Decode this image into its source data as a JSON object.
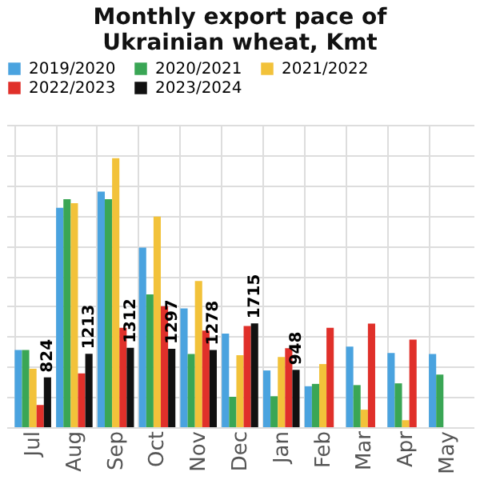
{
  "chart_data": {
    "type": "bar",
    "title": "Monthly export pace of Ukrainian wheat, Kmt",
    "categories": [
      "Jul",
      "Aug",
      "Sep",
      "Oct",
      "Nov",
      "Dec",
      "Jan",
      "Feb",
      "Mar",
      "Apr",
      "May"
    ],
    "ylim": [
      0,
      5000
    ],
    "tick_labels": "x",
    "grid": true,
    "legend": "top",
    "series": [
      {
        "name": "2019/2020",
        "color": "#4aa3df",
        "values": [
          1276,
          3626,
          3897,
          2969,
          1963,
          1547,
          938,
          677,
          1334,
          1228,
          1209
        ]
      },
      {
        "name": "2020/2021",
        "color": "#3aa655",
        "values": [
          1276,
          3771,
          3771,
          2195,
          1209,
          503,
          512,
          716,
          696,
          725,
          870
        ]
      },
      {
        "name": "2021/2022",
        "color": "#f2c23a",
        "values": [
          967,
          3704,
          4448,
          3481,
          2418,
          1189,
          1160,
          1044,
          290,
          116,
          null
        ]
      },
      {
        "name": "2022/2023",
        "color": "#e0302a",
        "values": [
          367,
          890,
          1644,
          2002,
          1596,
          1673,
          1305,
          1644,
          1712,
          1450,
          null
        ]
      },
      {
        "name": "2023/2024",
        "color": "#111111",
        "values": [
          824,
          1213,
          1312,
          1297,
          1278,
          1715,
          948,
          null,
          null,
          null,
          null
        ],
        "value_labels": [
          "824",
          "1213",
          "1312",
          "1297",
          "1278",
          "1715",
          "948",
          null,
          null,
          null,
          null
        ]
      }
    ]
  }
}
